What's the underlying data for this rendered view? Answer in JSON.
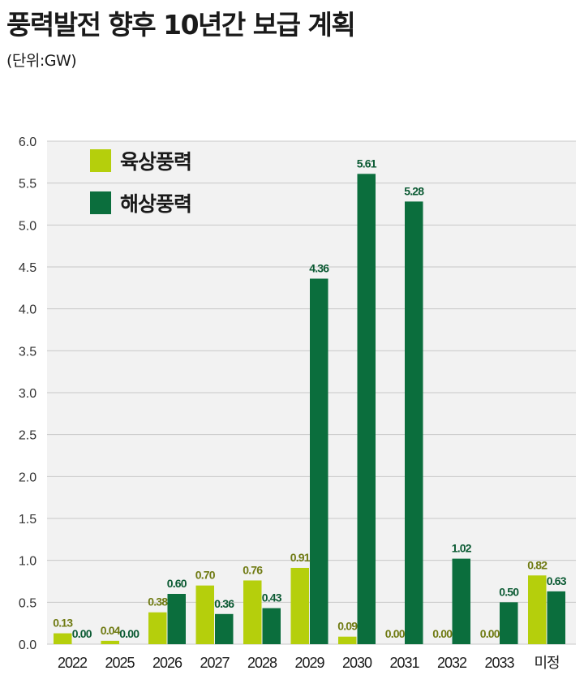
{
  "header": {
    "title": "풍력발전 향후 10년간 보급 계획",
    "unit": "(단위:GW)"
  },
  "colors": {
    "onshore": "#b5cf0c",
    "offshore": "#0b6e3d",
    "onshore_label": "#6f7a12",
    "offshore_label": "#0b5a33",
    "grid": "#c8c8c8",
    "plot_bg": "#f2f2f2"
  },
  "chart_data": {
    "type": "bar",
    "categories": [
      "2022",
      "2025",
      "2026",
      "2027",
      "2028",
      "2029",
      "2030",
      "2031",
      "2032",
      "2033",
      "미정"
    ],
    "series": [
      {
        "name": "육상풍력",
        "values": [
          0.13,
          0.04,
          0.38,
          0.7,
          0.76,
          0.91,
          0.09,
          0.0,
          0.0,
          0.0,
          0.82
        ]
      },
      {
        "name": "해상풍력",
        "values": [
          0.0,
          0.0,
          0.6,
          0.36,
          0.43,
          4.36,
          5.61,
          5.28,
          1.02,
          0.5,
          0.63
        ]
      }
    ],
    "yticks": [
      "0.0",
      "0.5",
      "1.0",
      "1.5",
      "2.0",
      "2.5",
      "3.0",
      "3.5",
      "4.0",
      "4.5",
      "5.0",
      "5.5",
      "6.0"
    ],
    "ylim": [
      0,
      6
    ],
    "grid": true,
    "legend_position": "top-left"
  }
}
